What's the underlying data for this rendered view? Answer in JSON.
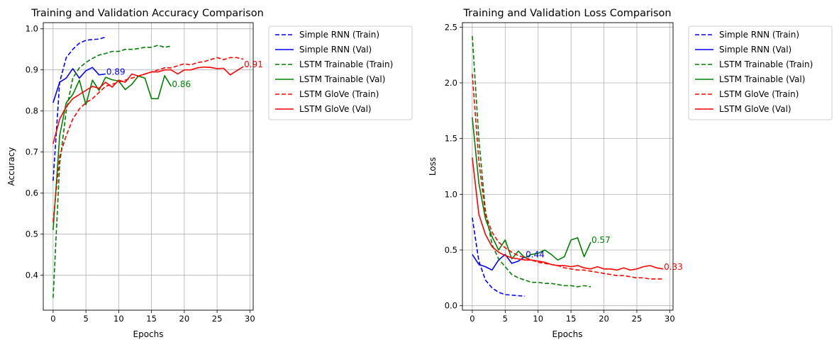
{
  "chart_data": [
    {
      "type": "line",
      "title": "Training and Validation Accuracy Comparison",
      "xlabel": "Epochs",
      "ylabel": "Accuracy",
      "xlim": [
        -1.5,
        30.5
      ],
      "ylim": [
        0.315,
        1.015
      ],
      "xticks": [
        0,
        5,
        10,
        15,
        20,
        25,
        30
      ],
      "yticks": [
        0.4,
        0.5,
        0.6,
        0.7,
        0.8,
        0.9,
        1.0
      ],
      "ytick_labels": [
        "0.4",
        "0.5",
        "0.6",
        "0.7",
        "0.8",
        "0.9",
        "1.0"
      ],
      "grid": true,
      "legend_placement": "outside-top-right",
      "series": [
        {
          "name": "Simple RNN (Train)",
          "color": "#0000ff",
          "dashed": true,
          "x": [
            0,
            1,
            2,
            3,
            4,
            5,
            6,
            7,
            8
          ],
          "y": [
            0.63,
            0.87,
            0.93,
            0.95,
            0.965,
            0.972,
            0.974,
            0.975,
            0.98
          ]
        },
        {
          "name": "Simple RNN (Val)",
          "color": "#0000ff",
          "dashed": false,
          "x": [
            0,
            1,
            2,
            3,
            4,
            5,
            6,
            7,
            8
          ],
          "y": [
            0.82,
            0.87,
            0.88,
            0.903,
            0.88,
            0.898,
            0.906,
            0.888,
            0.89
          ]
        },
        {
          "name": "LSTM Trainable (Train)",
          "color": "#008000",
          "dashed": true,
          "x": [
            0,
            1,
            2,
            3,
            4,
            5,
            6,
            7,
            8,
            9,
            10,
            11,
            12,
            13,
            14,
            15,
            16,
            17,
            18
          ],
          "y": [
            0.345,
            0.67,
            0.8,
            0.88,
            0.905,
            0.918,
            0.928,
            0.936,
            0.94,
            0.945,
            0.945,
            0.95,
            0.95,
            0.952,
            0.955,
            0.955,
            0.96,
            0.955,
            0.958
          ]
        },
        {
          "name": "LSTM Trainable (Val)",
          "color": "#008000",
          "dashed": false,
          "x": [
            0,
            1,
            2,
            3,
            4,
            5,
            6,
            7,
            8,
            9,
            10,
            11,
            12,
            13,
            14,
            15,
            16,
            17,
            18
          ],
          "y": [
            0.51,
            0.74,
            0.82,
            0.84,
            0.875,
            0.815,
            0.875,
            0.85,
            0.882,
            0.876,
            0.873,
            0.852,
            0.865,
            0.885,
            0.88,
            0.83,
            0.83,
            0.886,
            0.86
          ]
        },
        {
          "name": "LSTM GloVe (Train)",
          "color": "#ff0000",
          "dashed": true,
          "x": [
            0,
            1,
            2,
            3,
            4,
            5,
            6,
            7,
            8,
            9,
            10,
            11,
            12,
            13,
            14,
            15,
            16,
            17,
            18,
            19,
            20,
            21,
            22,
            23,
            24,
            25,
            26,
            27,
            28,
            29
          ],
          "y": [
            0.53,
            0.69,
            0.74,
            0.78,
            0.805,
            0.82,
            0.83,
            0.845,
            0.86,
            0.865,
            0.87,
            0.875,
            0.88,
            0.885,
            0.89,
            0.895,
            0.9,
            0.905,
            0.905,
            0.91,
            0.915,
            0.912,
            0.918,
            0.92,
            0.925,
            0.93,
            0.925,
            0.93,
            0.93,
            0.926
          ]
        },
        {
          "name": "LSTM GloVe (Val)",
          "color": "#ff0000",
          "dashed": false,
          "x": [
            0,
            1,
            2,
            3,
            4,
            5,
            6,
            7,
            8,
            9,
            10,
            11,
            12,
            13,
            14,
            15,
            16,
            17,
            18,
            19,
            20,
            21,
            22,
            23,
            24,
            25,
            26,
            27,
            28,
            29
          ],
          "y": [
            0.72,
            0.78,
            0.81,
            0.83,
            0.84,
            0.85,
            0.86,
            0.855,
            0.87,
            0.858,
            0.875,
            0.87,
            0.89,
            0.885,
            0.89,
            0.895,
            0.895,
            0.9,
            0.9,
            0.89,
            0.9,
            0.9,
            0.905,
            0.907,
            0.906,
            0.903,
            0.904,
            0.888,
            0.898,
            0.908
          ]
        }
      ],
      "annotations": [
        {
          "text": "0.89",
          "x": 8,
          "y": 0.89,
          "color": "#0000ff"
        },
        {
          "text": "0.86",
          "x": 18,
          "y": 0.86,
          "color": "#008000"
        },
        {
          "text": "0.91",
          "x": 29,
          "y": 0.908,
          "color": "#ff0000"
        }
      ]
    },
    {
      "type": "line",
      "title": "Training and Validation Loss Comparison",
      "xlabel": "Epochs",
      "ylabel": "Loss",
      "xlim": [
        -1.5,
        30.5
      ],
      "ylim": [
        -0.04,
        2.54
      ],
      "xticks": [
        0,
        5,
        10,
        15,
        20,
        25,
        30
      ],
      "yticks": [
        0.0,
        0.5,
        1.0,
        1.5,
        2.0,
        2.5
      ],
      "ytick_labels": [
        "0.0",
        "0.5",
        "1.0",
        "1.5",
        "2.0",
        "2.5"
      ],
      "grid": true,
      "legend_placement": "outside-top-right",
      "series": [
        {
          "name": "Simple RNN (Train)",
          "color": "#0000ff",
          "dashed": true,
          "x": [
            0,
            1,
            2,
            3,
            4,
            5,
            6,
            7,
            8
          ],
          "y": [
            0.79,
            0.4,
            0.23,
            0.16,
            0.12,
            0.1,
            0.095,
            0.09,
            0.085
          ]
        },
        {
          "name": "Simple RNN (Val)",
          "color": "#0000ff",
          "dashed": false,
          "x": [
            0,
            1,
            2,
            3,
            4,
            5,
            6,
            7,
            8
          ],
          "y": [
            0.46,
            0.37,
            0.35,
            0.32,
            0.41,
            0.46,
            0.38,
            0.4,
            0.44
          ]
        },
        {
          "name": "LSTM Trainable (Train)",
          "color": "#008000",
          "dashed": true,
          "x": [
            0,
            1,
            2,
            3,
            4,
            5,
            6,
            7,
            8,
            9,
            10,
            11,
            12,
            13,
            14,
            15,
            16,
            17,
            18
          ],
          "y": [
            2.42,
            1.5,
            0.85,
            0.55,
            0.42,
            0.35,
            0.28,
            0.25,
            0.23,
            0.21,
            0.21,
            0.2,
            0.2,
            0.19,
            0.18,
            0.18,
            0.17,
            0.18,
            0.17
          ]
        },
        {
          "name": "LSTM Trainable (Val)",
          "color": "#008000",
          "dashed": false,
          "x": [
            0,
            1,
            2,
            3,
            4,
            5,
            6,
            7,
            8,
            9,
            10,
            11,
            12,
            13,
            14,
            15,
            16,
            17,
            18
          ],
          "y": [
            1.69,
            1.1,
            0.78,
            0.62,
            0.5,
            0.59,
            0.42,
            0.49,
            0.43,
            0.46,
            0.47,
            0.5,
            0.46,
            0.41,
            0.44,
            0.59,
            0.61,
            0.44,
            0.57
          ]
        },
        {
          "name": "LSTM GloVe (Train)",
          "color": "#ff0000",
          "dashed": true,
          "x": [
            0,
            1,
            2,
            3,
            4,
            5,
            6,
            7,
            8,
            9,
            10,
            11,
            12,
            13,
            14,
            15,
            16,
            17,
            18,
            19,
            20,
            21,
            22,
            23,
            24,
            25,
            26,
            27,
            28,
            29
          ],
          "y": [
            2.08,
            1.3,
            0.82,
            0.66,
            0.57,
            0.52,
            0.48,
            0.45,
            0.43,
            0.41,
            0.39,
            0.38,
            0.37,
            0.36,
            0.34,
            0.33,
            0.32,
            0.32,
            0.31,
            0.3,
            0.29,
            0.28,
            0.27,
            0.27,
            0.26,
            0.25,
            0.25,
            0.24,
            0.24,
            0.24
          ]
        },
        {
          "name": "LSTM GloVe (Val)",
          "color": "#ff0000",
          "dashed": false,
          "x": [
            0,
            1,
            2,
            3,
            4,
            5,
            6,
            7,
            8,
            9,
            10,
            11,
            12,
            13,
            14,
            15,
            16,
            17,
            18,
            19,
            20,
            21,
            22,
            23,
            24,
            25,
            26,
            27,
            28,
            29
          ],
          "y": [
            1.33,
            0.82,
            0.64,
            0.53,
            0.48,
            0.45,
            0.43,
            0.42,
            0.41,
            0.41,
            0.4,
            0.39,
            0.37,
            0.36,
            0.36,
            0.35,
            0.36,
            0.34,
            0.33,
            0.35,
            0.33,
            0.33,
            0.32,
            0.34,
            0.32,
            0.33,
            0.35,
            0.36,
            0.34,
            0.33
          ]
        }
      ],
      "annotations": [
        {
          "text": "0.44",
          "x": 8,
          "y": 0.44,
          "color": "#0000ff"
        },
        {
          "text": "0.57",
          "x": 18,
          "y": 0.57,
          "color": "#008000"
        },
        {
          "text": "0.33",
          "x": 29,
          "y": 0.33,
          "color": "#ff0000"
        }
      ]
    }
  ]
}
